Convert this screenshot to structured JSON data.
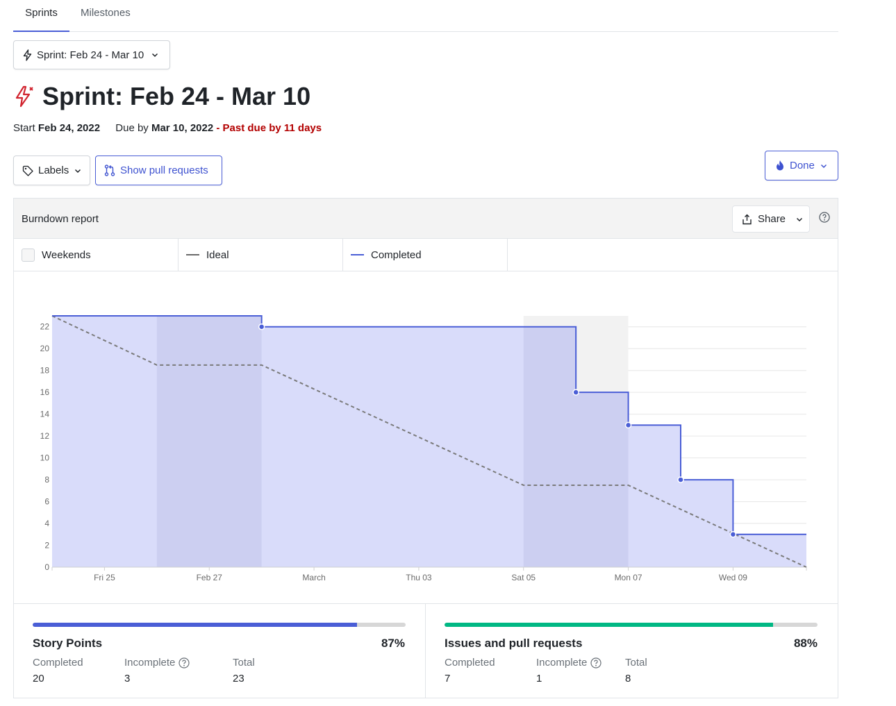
{
  "tabs": [
    {
      "label": "Sprints",
      "active": true
    },
    {
      "label": "Milestones",
      "active": false
    }
  ],
  "sprint_selector": {
    "label": "Sprint: Feb 24 - Mar 10",
    "icon": "lightning-icon"
  },
  "title": {
    "text": "Sprint: Feb 24 - Mar 10",
    "icon": "lightning-alert-icon",
    "icon_color": "#d1242f"
  },
  "meta": {
    "start_label": "Start",
    "start_date": "Feb 24, 2022",
    "due_label": "Due by",
    "due_date": "Mar 10, 2022",
    "separator": " - ",
    "past_due": "Past due by 11 days"
  },
  "toolbar": {
    "labels_button": "Labels",
    "pull_requests_button": "Show pull requests",
    "done_button": "Done"
  },
  "report": {
    "title": "Burndown report",
    "share_button": "Share",
    "legend": {
      "weekends": "Weekends",
      "ideal": "Ideal",
      "completed": "Completed"
    }
  },
  "colors": {
    "accent": "#4a5ed6",
    "completed_fill": "#d9dcfa",
    "weekend_shade": "#c9cbe8",
    "ideal_line": "#7a7a7a",
    "story_bar": "#4a5ed6",
    "issues_bar": "#00b884",
    "past_due": "#b30000"
  },
  "chart_data": {
    "type": "line",
    "title": "Burndown report",
    "x_ticks": [
      {
        "day": 1,
        "label": "Fri 25"
      },
      {
        "day": 3,
        "label": "Feb 27"
      },
      {
        "day": 5,
        "label": "March"
      },
      {
        "day": 7,
        "label": "Thu 03"
      },
      {
        "day": 9,
        "label": "Sat 05"
      },
      {
        "day": 11,
        "label": "Mon 07"
      },
      {
        "day": 13,
        "label": "Wed 09"
      }
    ],
    "xlim": [
      0,
      14.4
    ],
    "ylim": [
      0,
      23
    ],
    "y_ticks": [
      0,
      2,
      4,
      6,
      8,
      10,
      12,
      14,
      16,
      18,
      20,
      22
    ],
    "weekend_ranges": [
      [
        2,
        4
      ],
      [
        9,
        11
      ]
    ],
    "series": [
      {
        "name": "Completed",
        "style": "step",
        "points": [
          [
            0,
            23
          ],
          [
            4,
            23
          ],
          [
            4,
            22
          ],
          [
            10,
            22
          ],
          [
            10,
            16
          ],
          [
            11,
            16
          ],
          [
            11,
            13
          ],
          [
            12,
            13
          ],
          [
            12,
            8
          ],
          [
            13,
            8
          ],
          [
            13,
            3
          ],
          [
            14.4,
            3
          ]
        ],
        "markers": [
          [
            4,
            22
          ],
          [
            10,
            16
          ],
          [
            11,
            13
          ],
          [
            12,
            8
          ],
          [
            13,
            3
          ]
        ]
      },
      {
        "name": "Ideal",
        "style": "dashed",
        "points": [
          [
            0,
            23
          ],
          [
            2,
            18.5
          ],
          [
            4,
            18.5
          ],
          [
            9,
            7.5
          ],
          [
            11,
            7.5
          ],
          [
            14.4,
            0
          ]
        ]
      }
    ]
  },
  "stats": {
    "story_points": {
      "title": "Story Points",
      "percent": "87%",
      "fill_fraction": 0.87,
      "completed_label": "Completed",
      "completed": "20",
      "incomplete_label": "Incomplete",
      "incomplete": "3",
      "total_label": "Total",
      "total": "23"
    },
    "issues": {
      "title": "Issues and pull requests",
      "percent": "88%",
      "fill_fraction": 0.88,
      "completed_label": "Completed",
      "completed": "7",
      "incomplete_label": "Incomplete",
      "incomplete": "1",
      "total_label": "Total",
      "total": "8"
    }
  }
}
